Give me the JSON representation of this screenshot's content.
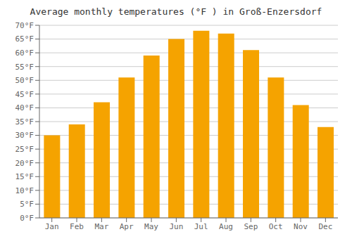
{
  "chart_data": {
    "type": "bar",
    "title": "Average monthly temperatures (°F ) in Groß-Enzersdorf",
    "categories": [
      "Jan",
      "Feb",
      "Mar",
      "Apr",
      "May",
      "Jun",
      "Jul",
      "Aug",
      "Sep",
      "Oct",
      "Nov",
      "Dec"
    ],
    "values": [
      30,
      34,
      42,
      51,
      59,
      65,
      68,
      67,
      61,
      51,
      41,
      33
    ],
    "color": "#F5A300",
    "ylim": [
      0,
      70
    ],
    "yticks": [
      {
        "value": 0,
        "label": "0°F"
      },
      {
        "value": 5,
        "label": "5°F"
      },
      {
        "value": 10,
        "label": "10°F"
      },
      {
        "value": 15,
        "label": "15°F"
      },
      {
        "value": 20,
        "label": "20°F"
      },
      {
        "value": 25,
        "label": "25°F"
      },
      {
        "value": 30,
        "label": "30°F"
      },
      {
        "value": 35,
        "label": "35°F"
      },
      {
        "value": 40,
        "label": "40°F"
      },
      {
        "value": 45,
        "label": "45°F"
      },
      {
        "value": 50,
        "label": "50°F"
      },
      {
        "value": 55,
        "label": "55°F"
      },
      {
        "value": 60,
        "label": "60°F"
      },
      {
        "value": 65,
        "label": "65°F"
      },
      {
        "value": 70,
        "label": "70°F"
      }
    ],
    "grid": true
  }
}
